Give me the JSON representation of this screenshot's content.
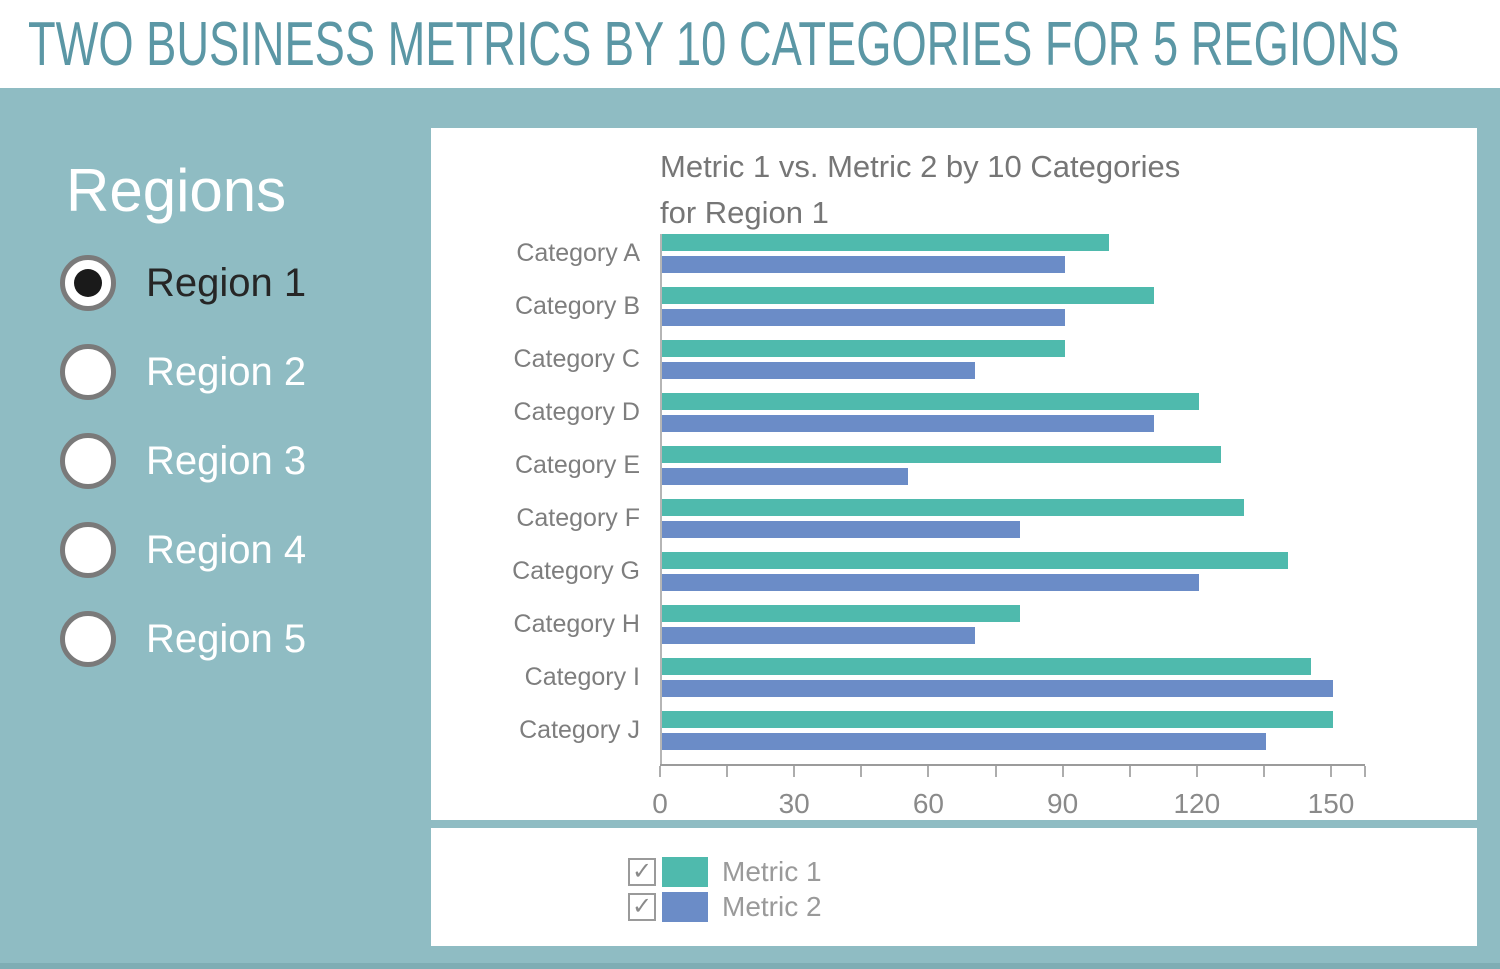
{
  "header": {
    "title": "TWO BUSINESS METRICS BY 10 CATEGORIES FOR 5 REGIONS"
  },
  "sidebar": {
    "heading": "Regions",
    "options": [
      {
        "label": "Region 1",
        "selected": true
      },
      {
        "label": "Region 2",
        "selected": false
      },
      {
        "label": "Region 3",
        "selected": false
      },
      {
        "label": "Region 4",
        "selected": false
      },
      {
        "label": "Region 5",
        "selected": false
      }
    ]
  },
  "chart_data": {
    "type": "bar",
    "orientation": "horizontal",
    "title": "Metric 1 vs. Metric 2 by 10 Categories\nfor Region 1",
    "categories": [
      "Category A",
      "Category B",
      "Category C",
      "Category D",
      "Category E",
      "Category F",
      "Category G",
      "Category H",
      "Category I",
      "Category J"
    ],
    "series": [
      {
        "name": "Metric 1",
        "color": "#4FBAAD",
        "values": [
          100,
          110,
          90,
          120,
          125,
          130,
          140,
          80,
          145,
          150
        ]
      },
      {
        "name": "Metric 2",
        "color": "#6B8CC7",
        "values": [
          90,
          90,
          70,
          110,
          55,
          80,
          120,
          70,
          150,
          135
        ]
      }
    ],
    "xlim": [
      0,
      157.5
    ],
    "x_major_ticks": [
      0,
      30,
      60,
      90,
      120,
      150
    ],
    "x_minor_tick_step": 15,
    "grid": false,
    "legend_position": "bottom-panel"
  },
  "legend": {
    "items": [
      {
        "label": "Metric 1",
        "checked": true,
        "color": "#4FBAAD"
      },
      {
        "label": "Metric 2",
        "checked": true,
        "color": "#6B8CC7"
      }
    ]
  },
  "colors": {
    "background": "#8FBCC3",
    "panel": "#FFFFFF",
    "header_title": "#5B97A5",
    "metric1": "#4FBAAD",
    "metric2": "#6B8CC7",
    "chart_text": "#767676",
    "axis_text": "#8A8A8A"
  }
}
